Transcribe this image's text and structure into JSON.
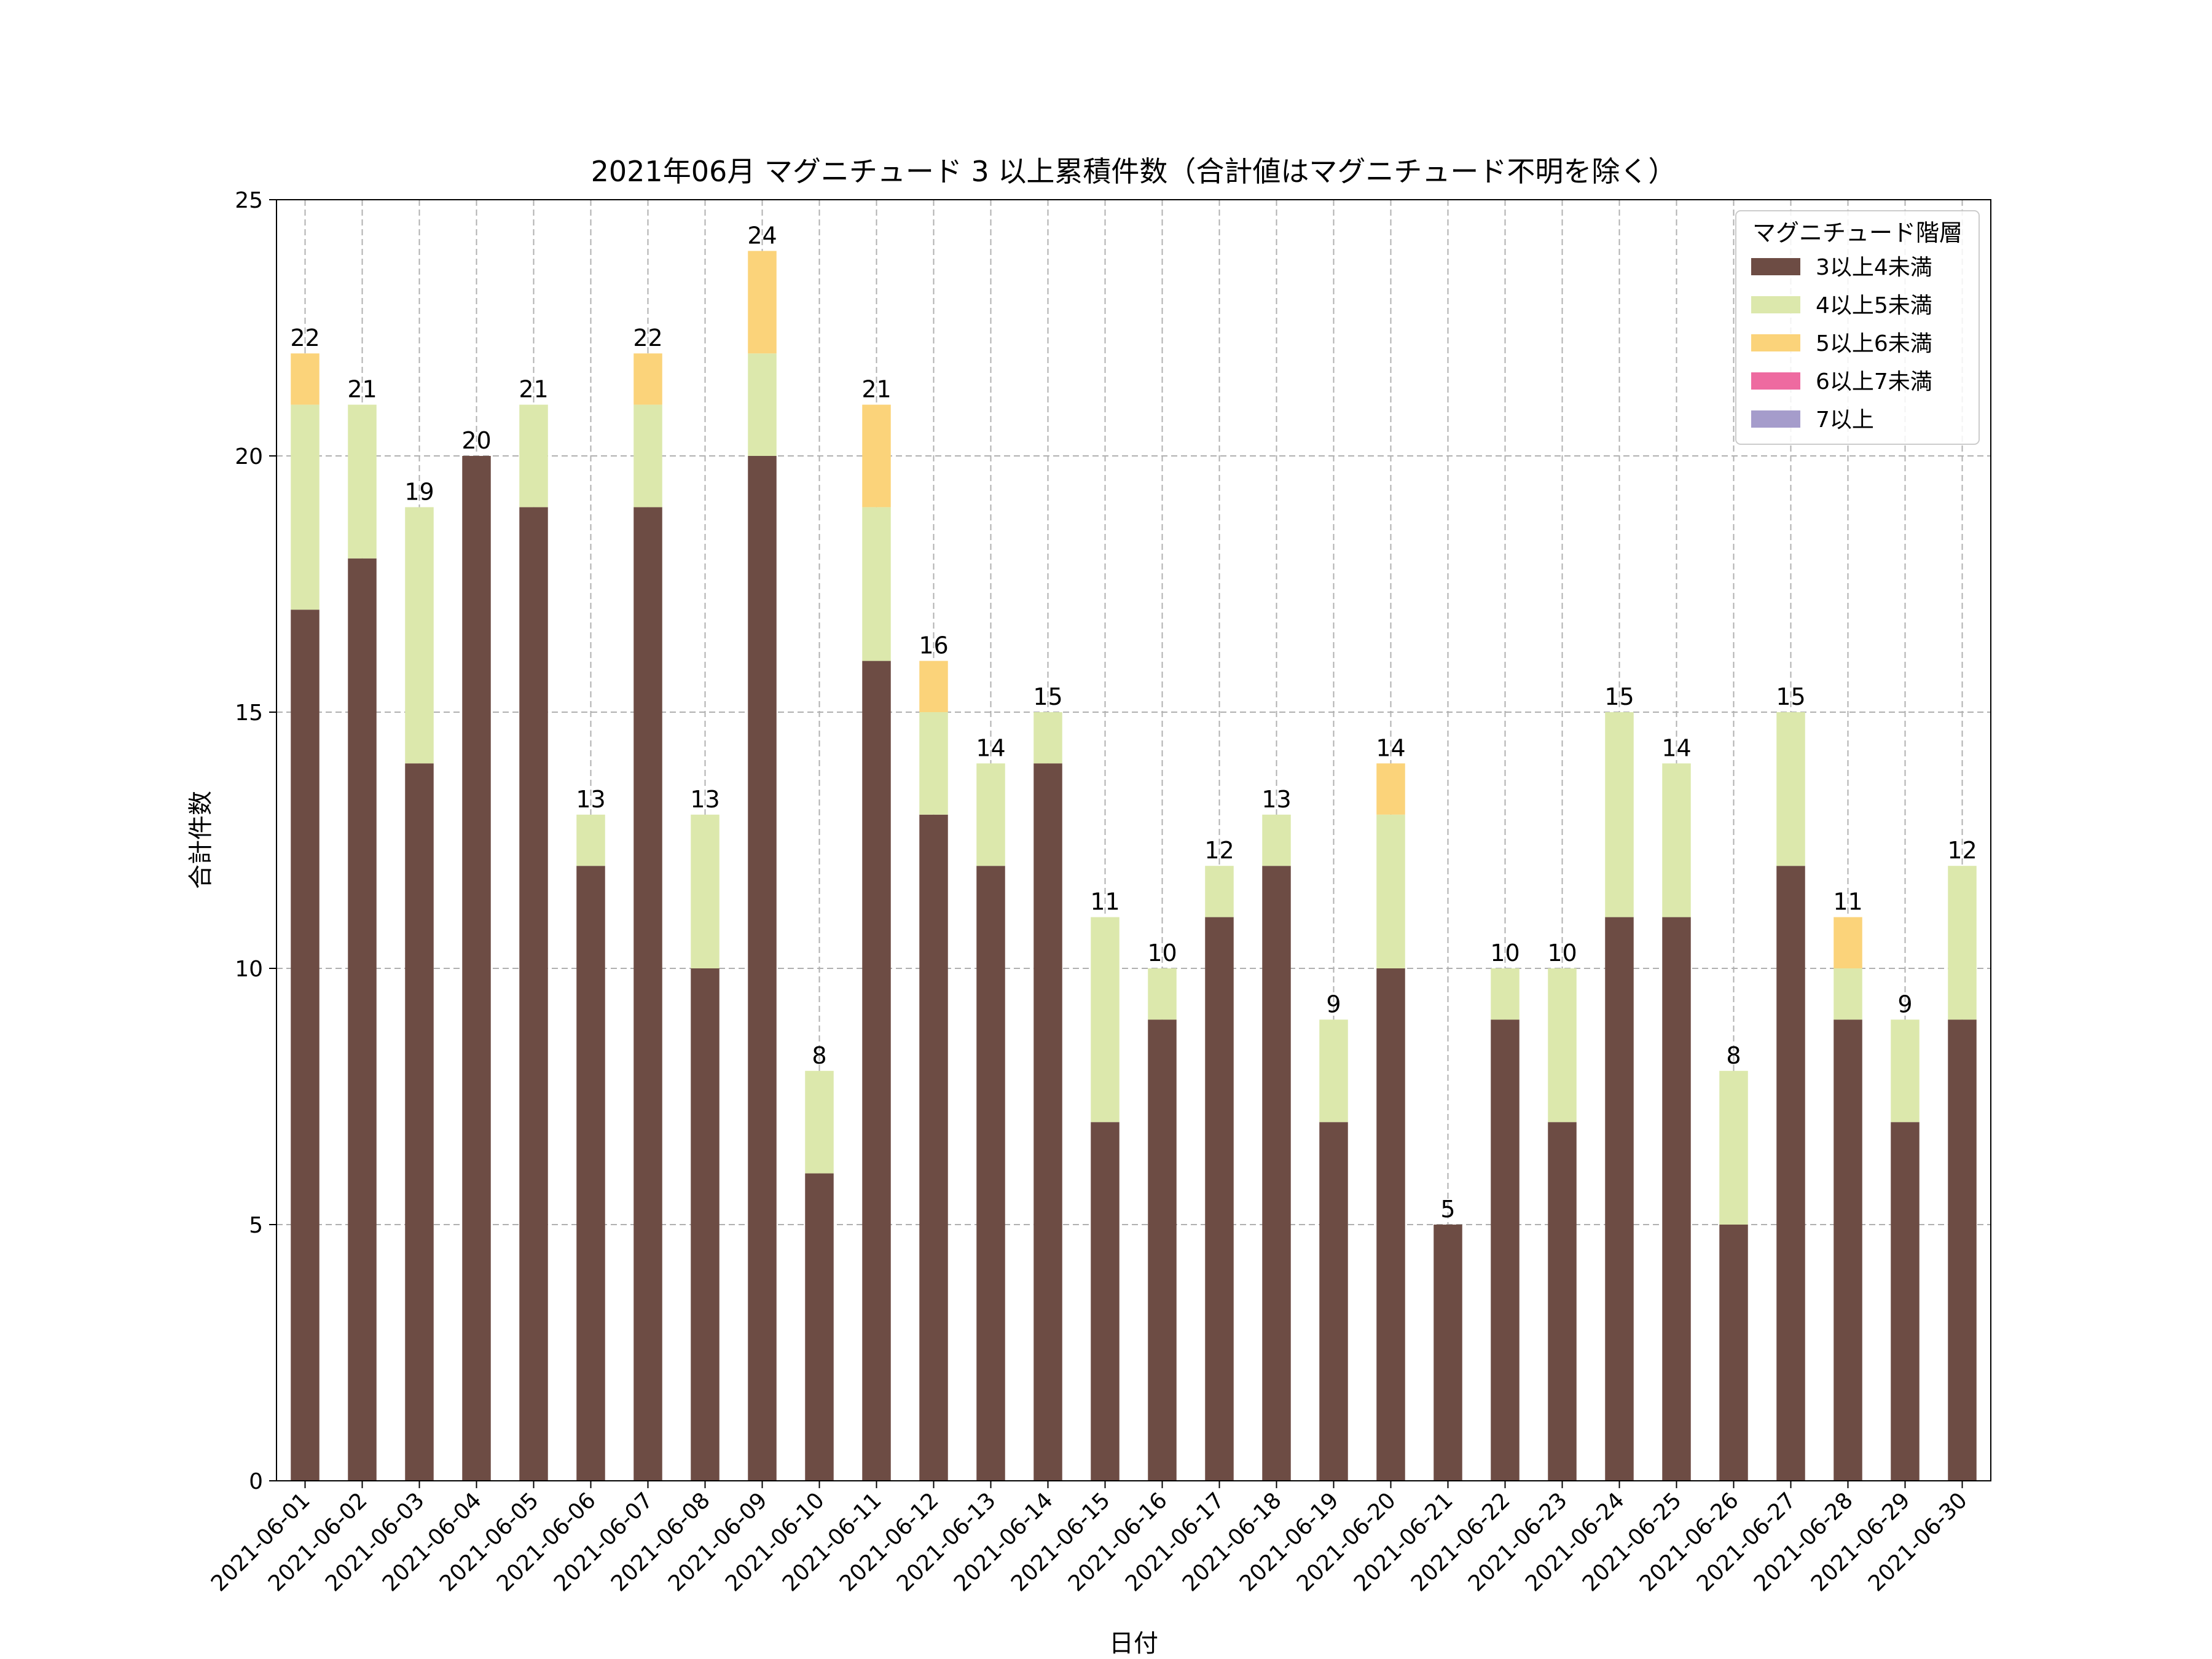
{
  "chart_data": {
    "type": "bar",
    "stacked": true,
    "title": "2021年06月 マグニチュード 3 以上累積件数（合計値はマグニチュード不明を除く）",
    "xlabel": "日付",
    "ylabel": "合計件数",
    "ylim": [
      0,
      25
    ],
    "yticks": [
      0,
      5,
      10,
      15,
      20,
      25
    ],
    "grid": true,
    "legend_title": "マグニチュード階層",
    "legend_position": "top-right",
    "categories": [
      "2021-06-01",
      "2021-06-02",
      "2021-06-03",
      "2021-06-04",
      "2021-06-05",
      "2021-06-06",
      "2021-06-07",
      "2021-06-08",
      "2021-06-09",
      "2021-06-10",
      "2021-06-11",
      "2021-06-12",
      "2021-06-13",
      "2021-06-14",
      "2021-06-15",
      "2021-06-16",
      "2021-06-17",
      "2021-06-18",
      "2021-06-19",
      "2021-06-20",
      "2021-06-21",
      "2021-06-22",
      "2021-06-23",
      "2021-06-24",
      "2021-06-25",
      "2021-06-26",
      "2021-06-27",
      "2021-06-28",
      "2021-06-29",
      "2021-06-30"
    ],
    "series": [
      {
        "name": "3以上4未満",
        "color": "#6d4c44",
        "values": [
          17,
          18,
          14,
          20,
          19,
          12,
          19,
          10,
          20,
          6,
          16,
          13,
          12,
          14,
          7,
          9,
          11,
          12,
          7,
          10,
          5,
          9,
          7,
          11,
          11,
          5,
          12,
          9,
          7,
          9
        ]
      },
      {
        "name": "4以上5未満",
        "color": "#dce8ac",
        "values": [
          4,
          3,
          5,
          0,
          2,
          1,
          2,
          3,
          2,
          2,
          3,
          2,
          2,
          1,
          4,
          1,
          1,
          1,
          2,
          3,
          0,
          1,
          3,
          4,
          3,
          3,
          3,
          1,
          2,
          3
        ]
      },
      {
        "name": "5以上6未満",
        "color": "#fbd37a",
        "values": [
          1,
          0,
          0,
          0,
          0,
          0,
          1,
          0,
          2,
          0,
          2,
          1,
          0,
          0,
          0,
          0,
          0,
          0,
          0,
          1,
          0,
          0,
          0,
          0,
          0,
          0,
          0,
          1,
          0,
          0
        ]
      },
      {
        "name": "6以上7未満",
        "color": "#ee6aa0",
        "values": [
          0,
          0,
          0,
          0,
          0,
          0,
          0,
          0,
          0,
          0,
          0,
          0,
          0,
          0,
          0,
          0,
          0,
          0,
          0,
          0,
          0,
          0,
          0,
          0,
          0,
          0,
          0,
          0,
          0,
          0
        ]
      },
      {
        "name": "7以上",
        "color": "#a59ccb",
        "values": [
          0,
          0,
          0,
          0,
          0,
          0,
          0,
          0,
          0,
          0,
          0,
          0,
          0,
          0,
          0,
          0,
          0,
          0,
          0,
          0,
          0,
          0,
          0,
          0,
          0,
          0,
          0,
          0,
          0,
          0
        ]
      }
    ],
    "totals": [
      22,
      21,
      19,
      20,
      21,
      13,
      22,
      13,
      24,
      8,
      21,
      16,
      14,
      15,
      11,
      10,
      12,
      13,
      9,
      14,
      5,
      10,
      10,
      15,
      14,
      8,
      15,
      11,
      9,
      12
    ]
  }
}
